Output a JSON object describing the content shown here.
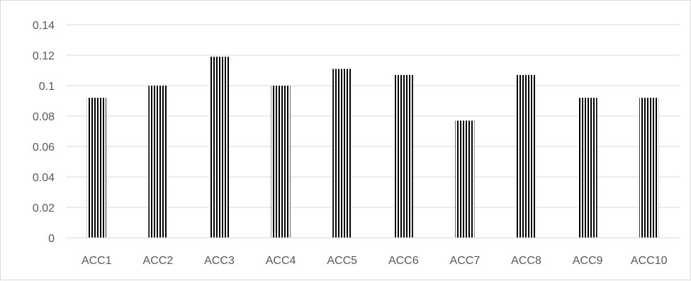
{
  "chart_data": {
    "type": "bar",
    "categories": [
      "ACC1",
      "ACC2",
      "ACC3",
      "ACC4",
      "ACC5",
      "ACC6",
      "ACC7",
      "ACC8",
      "ACC9",
      "ACC10"
    ],
    "values": [
      0.092,
      0.1,
      0.119,
      0.1,
      0.111,
      0.107,
      0.077,
      0.107,
      0.092,
      0.092
    ],
    "title": "",
    "xlabel": "",
    "ylabel": "",
    "ylim": [
      0,
      0.14
    ],
    "yticks": [
      "0",
      "0.02",
      "0.04",
      "0.06",
      "0.08",
      "0.1",
      "0.12",
      "0.14"
    ],
    "grid": true,
    "legend": "none",
    "bar_fill": "vertical-stripes",
    "colors": {
      "bar_stripe": "#000000",
      "bar_background": "#ffffff",
      "gridline": "#d9d9d9",
      "axis_line": "#d9d9d9",
      "tick_text": "#595959"
    }
  }
}
